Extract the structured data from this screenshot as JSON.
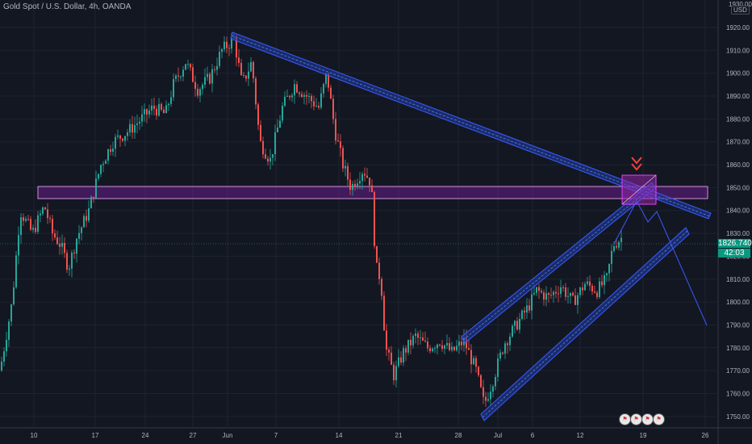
{
  "header": {
    "title": "Gold Spot / U.S. Dollar, 4h, OANDA"
  },
  "axis": {
    "currency": "USD",
    "top_label": "1930.00",
    "y_ticks": [
      "1920.00",
      "1910.00",
      "1900.00",
      "1890.00",
      "1880.00",
      "1870.00",
      "1860.00",
      "1850.00",
      "1840.00",
      "1830.00",
      "1820.00",
      "1810.00",
      "1800.00",
      "1790.00",
      "1780.00",
      "1770.00",
      "1760.00",
      "1750.00"
    ],
    "x_ticks": [
      "10",
      "17",
      "24",
      "27",
      "Jun",
      "7",
      "14",
      "21",
      "28",
      "Jul",
      "6",
      "12",
      "19",
      "26"
    ]
  },
  "price": {
    "last": "1826.740",
    "countdown": "42:03"
  },
  "colors": {
    "up": "#26a69a",
    "down": "#ef5350",
    "channel": "#2962ff",
    "zone": "#9c27b0",
    "arrow": "#f44336",
    "bg": "#131722"
  },
  "events": {
    "count": 4,
    "icon": "us-flag-icon"
  },
  "chart_data": {
    "type": "line",
    "ylim": [
      1745,
      1932
    ],
    "price_path": [
      [
        0,
        1770
      ],
      [
        15,
        1800
      ],
      [
        25,
        1840
      ],
      [
        40,
        1830
      ],
      [
        55,
        1842
      ],
      [
        65,
        1830
      ],
      [
        75,
        1825
      ],
      [
        85,
        1815
      ],
      [
        95,
        1828
      ],
      [
        110,
        1840
      ],
      [
        125,
        1860
      ],
      [
        140,
        1870
      ],
      [
        160,
        1875
      ],
      [
        175,
        1880
      ],
      [
        190,
        1885
      ],
      [
        205,
        1882
      ],
      [
        215,
        1895
      ],
      [
        230,
        1905
      ],
      [
        245,
        1893
      ],
      [
        260,
        1898
      ],
      [
        275,
        1910
      ],
      [
        290,
        1915
      ],
      [
        300,
        1895
      ],
      [
        312,
        1905
      ],
      [
        322,
        1870
      ],
      [
        335,
        1862
      ],
      [
        350,
        1885
      ],
      [
        365,
        1895
      ],
      [
        380,
        1890
      ],
      [
        395,
        1885
      ],
      [
        405,
        1900
      ],
      [
        415,
        1875
      ],
      [
        425,
        1860
      ],
      [
        435,
        1850
      ],
      [
        450,
        1858
      ],
      [
        460,
        1852
      ],
      [
        466,
        1815
      ],
      [
        472,
        1810
      ],
      [
        478,
        1780
      ],
      [
        488,
        1768
      ],
      [
        500,
        1778
      ],
      [
        515,
        1785
      ],
      [
        530,
        1780
      ],
      [
        545,
        1783
      ],
      [
        560,
        1778
      ],
      [
        575,
        1783
      ],
      [
        590,
        1770
      ],
      [
        600,
        1755
      ],
      [
        610,
        1765
      ],
      [
        625,
        1782
      ],
      [
        640,
        1790
      ],
      [
        655,
        1798
      ],
      [
        665,
        1805
      ],
      [
        680,
        1802
      ],
      [
        695,
        1807
      ],
      [
        710,
        1800
      ],
      [
        725,
        1808
      ],
      [
        740,
        1805
      ],
      [
        752,
        1810
      ],
      [
        760,
        1825
      ],
      [
        770,
        1828
      ]
    ],
    "annotations": {
      "zone_price": [
        1846.5,
        1851.5
      ],
      "upper_trendline": {
        "from": [
          "May 31",
          1919
        ],
        "to": [
          "Jul 22",
          1839
        ]
      },
      "ascending_channel": [
        {
          "from": [
            "Jun 28",
            1787
          ],
          "to": [
            "Jul 19",
            1852
          ]
        },
        {
          "from": [
            "Jun 30",
            1757
          ],
          "to": [
            "Jul 22",
            1830
          ]
        }
      ]
    }
  }
}
